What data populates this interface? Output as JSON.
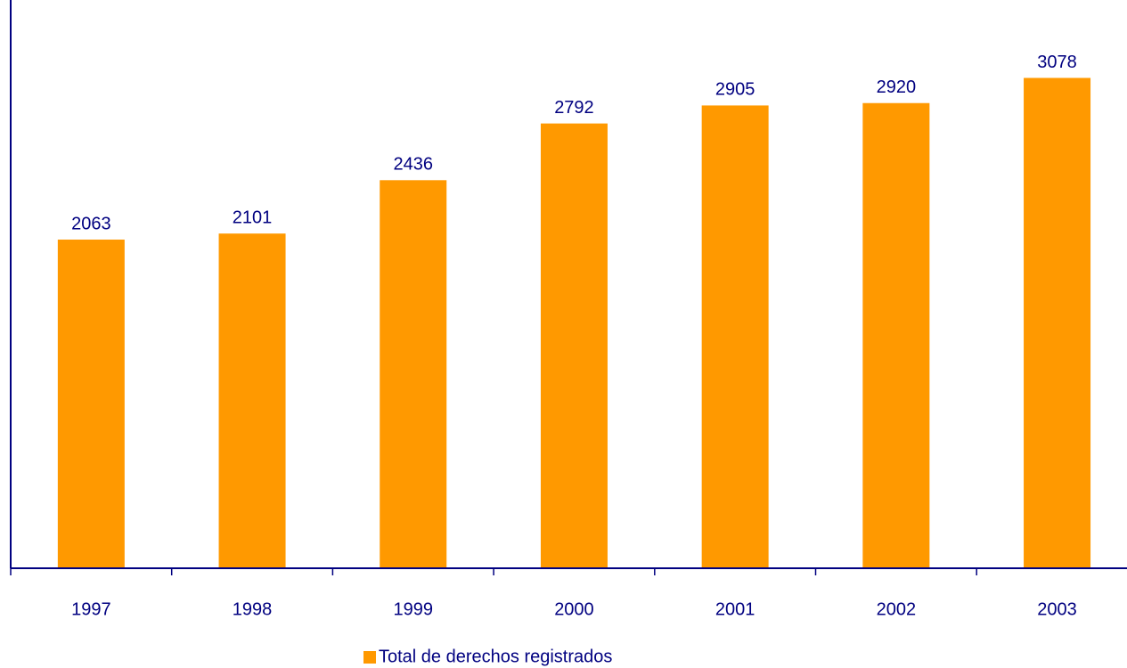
{
  "chart_data": {
    "type": "bar",
    "categories": [
      "1997",
      "1998",
      "1999",
      "2000",
      "2001",
      "2002",
      "2003"
    ],
    "series": [
      {
        "name": "Total de derechos registrados",
        "color": "#ff9900",
        "values": [
          2063,
          2101,
          2436,
          2792,
          2905,
          2920,
          3078
        ]
      }
    ],
    "ylim": [
      0,
      3500
    ]
  }
}
